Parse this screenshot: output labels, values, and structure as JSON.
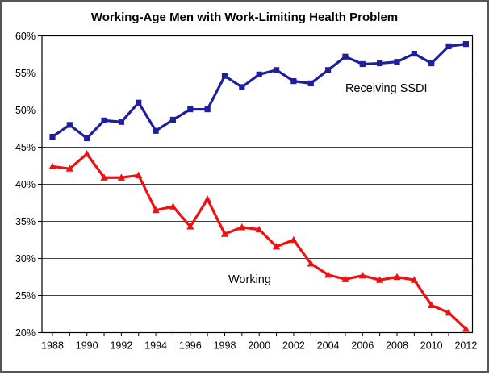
{
  "title": "Working-Age Men with Work-Limiting Health Problem",
  "colors": {
    "ssdi_line": "#1F1F9C",
    "working_line": "#EE1111",
    "gridline": "#404040",
    "axis": "#000000",
    "text": "#000000",
    "frame_border": "#555555",
    "background": "#FFFFFF"
  },
  "chart_data": {
    "type": "line",
    "title": "Working-Age Men with Work-Limiting Health Problem",
    "xlabel": "",
    "ylabel": "",
    "x": [
      1988,
      1989,
      1990,
      1991,
      1992,
      1993,
      1994,
      1995,
      1996,
      1997,
      1998,
      1999,
      2000,
      2001,
      2002,
      2003,
      2004,
      2005,
      2006,
      2007,
      2008,
      2009,
      2010,
      2011,
      2012
    ],
    "series": [
      {
        "name": "Receiving SSDI",
        "color": "#1F1F9C",
        "marker": "square",
        "values": [
          46.4,
          48.0,
          46.2,
          48.6,
          48.4,
          51.0,
          47.2,
          48.7,
          50.1,
          50.1,
          54.6,
          53.1,
          54.8,
          55.4,
          53.9,
          53.6,
          55.4,
          57.2,
          56.2,
          56.3,
          56.5,
          57.6,
          56.3,
          58.6,
          58.9
        ]
      },
      {
        "name": "Working",
        "color": "#EE1111",
        "marker": "triangle",
        "values": [
          42.4,
          42.1,
          44.1,
          40.9,
          40.9,
          41.2,
          36.5,
          37.0,
          34.3,
          38.0,
          33.3,
          34.2,
          33.9,
          31.6,
          32.5,
          29.3,
          27.8,
          27.2,
          27.7,
          27.1,
          27.5,
          27.1,
          23.7,
          22.7,
          20.5
        ]
      }
    ],
    "ylim": [
      20,
      60
    ],
    "y_ticks": [
      "20%",
      "25%",
      "30%",
      "35%",
      "40%",
      "45%",
      "50%",
      "55%",
      "60%"
    ],
    "x_ticks": [
      "1988",
      "1990",
      "1992",
      "1994",
      "1996",
      "1998",
      "2000",
      "2002",
      "2004",
      "2006",
      "2008",
      "2010",
      "2012"
    ],
    "grid": "horizontal",
    "legend": "none",
    "annotations": [
      {
        "text": "Receiving SSDI",
        "x": 428,
        "y": 114
      },
      {
        "text": "Working",
        "x": 283,
        "y": 351
      }
    ]
  }
}
